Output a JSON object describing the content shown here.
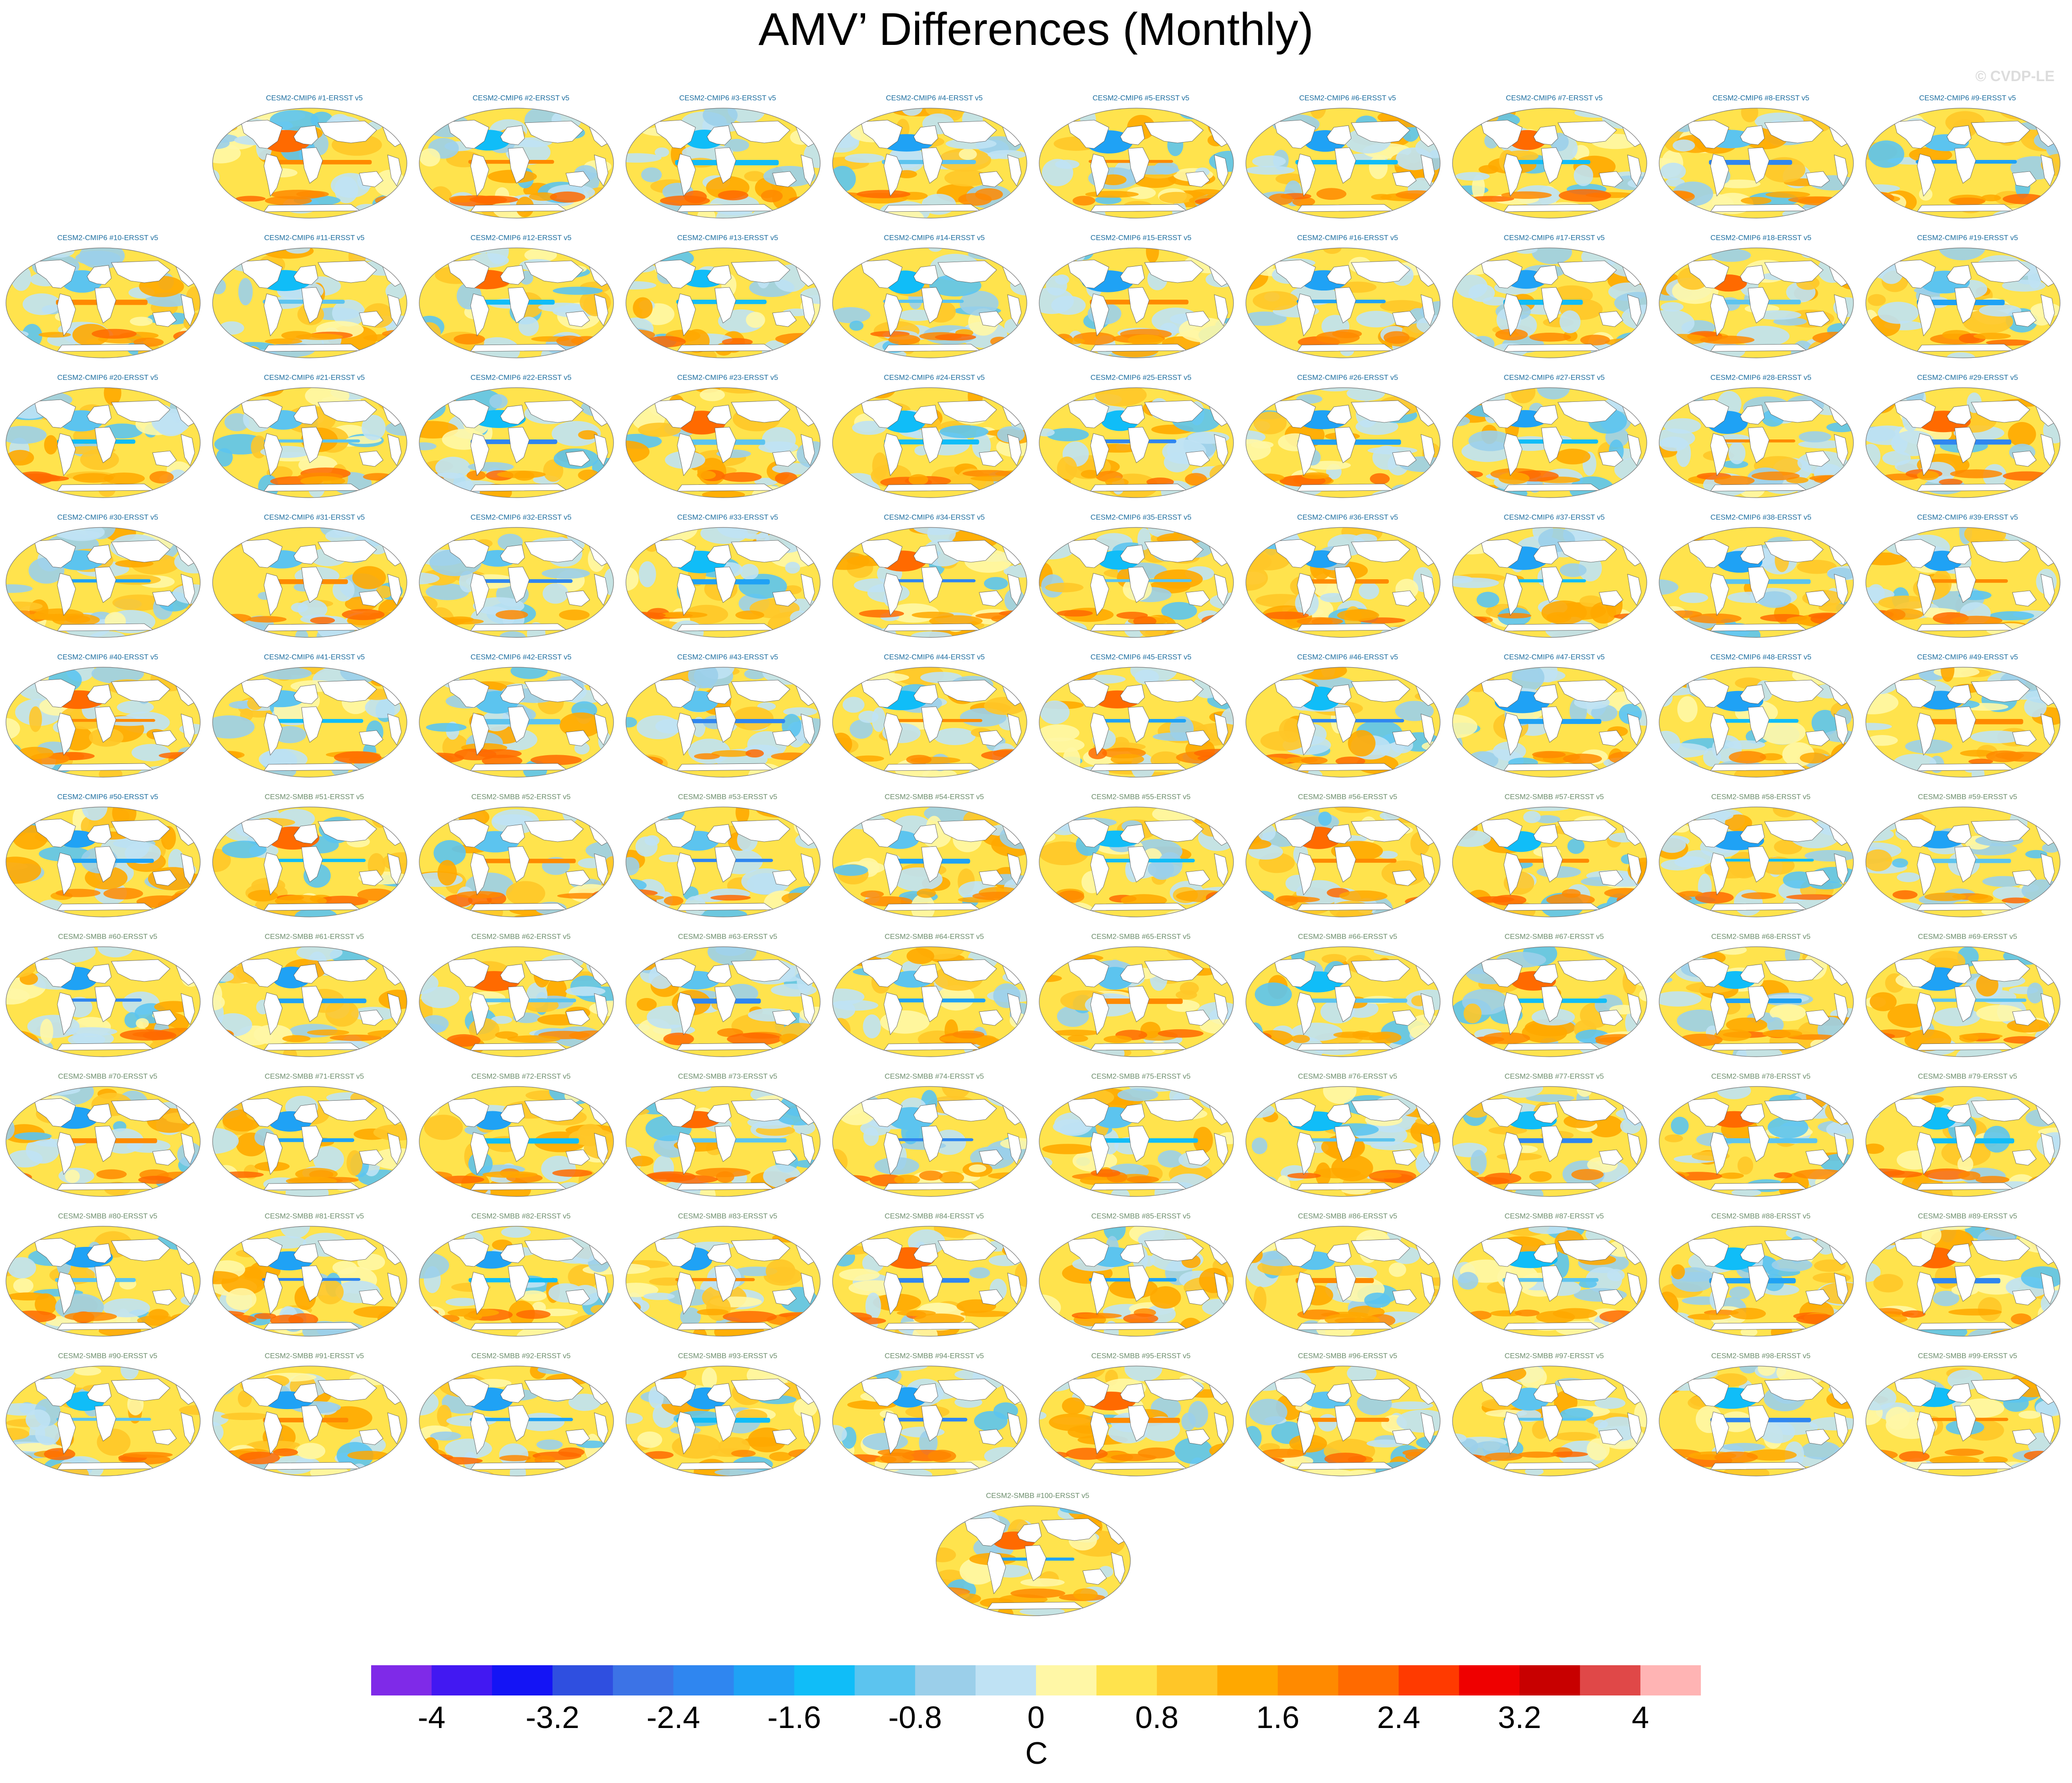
{
  "title": "AMV’ Differences (Monthly)",
  "watermark": "© CVDP-LE",
  "label_colors": {
    "cmip6": "#1f6fa0",
    "smbb": "#6e8f6e"
  },
  "chart_data": {
    "type": "heatmap",
    "description_kind": "map panels",
    "panels": [
      "CESM2-CMIP6 #1-ERSST v5",
      "CESM2-CMIP6 #2-ERSST v5",
      "CESM2-CMIP6 #3-ERSST v5",
      "CESM2-CMIP6 #4-ERSST v5",
      "CESM2-CMIP6 #5-ERSST v5",
      "CESM2-CMIP6 #6-ERSST v5",
      "CESM2-CMIP6 #7-ERSST v5",
      "CESM2-CMIP6 #8-ERSST v5",
      "CESM2-CMIP6 #9-ERSST v5",
      "CESM2-CMIP6 #10-ERSST v5",
      "CESM2-CMIP6 #11-ERSST v5",
      "CESM2-CMIP6 #12-ERSST v5",
      "CESM2-CMIP6 #13-ERSST v5",
      "CESM2-CMIP6 #14-ERSST v5",
      "CESM2-CMIP6 #15-ERSST v5",
      "CESM2-CMIP6 #16-ERSST v5",
      "CESM2-CMIP6 #17-ERSST v5",
      "CESM2-CMIP6 #18-ERSST v5",
      "CESM2-CMIP6 #19-ERSST v5",
      "CESM2-CMIP6 #20-ERSST v5",
      "CESM2-CMIP6 #21-ERSST v5",
      "CESM2-CMIP6 #22-ERSST v5",
      "CESM2-CMIP6 #23-ERSST v5",
      "CESM2-CMIP6 #24-ERSST v5",
      "CESM2-CMIP6 #25-ERSST v5",
      "CESM2-CMIP6 #26-ERSST v5",
      "CESM2-CMIP6 #27-ERSST v5",
      "CESM2-CMIP6 #28-ERSST v5",
      "CESM2-CMIP6 #29-ERSST v5",
      "CESM2-CMIP6 #30-ERSST v5",
      "CESM2-CMIP6 #31-ERSST v5",
      "CESM2-CMIP6 #32-ERSST v5",
      "CESM2-CMIP6 #33-ERSST v5",
      "CESM2-CMIP6 #34-ERSST v5",
      "CESM2-CMIP6 #35-ERSST v5",
      "CESM2-CMIP6 #36-ERSST v5",
      "CESM2-CMIP6 #37-ERSST v5",
      "CESM2-CMIP6 #38-ERSST v5",
      "CESM2-CMIP6 #39-ERSST v5",
      "CESM2-CMIP6 #40-ERSST v5",
      "CESM2-CMIP6 #41-ERSST v5",
      "CESM2-CMIP6 #42-ERSST v5",
      "CESM2-CMIP6 #43-ERSST v5",
      "CESM2-CMIP6 #44-ERSST v5",
      "CESM2-CMIP6 #45-ERSST v5",
      "CESM2-CMIP6 #46-ERSST v5",
      "CESM2-CMIP6 #47-ERSST v5",
      "CESM2-CMIP6 #48-ERSST v5",
      "CESM2-CMIP6 #49-ERSST v5",
      "CESM2-CMIP6 #50-ERSST v5",
      "CESM2-SMBB #51-ERSST v5",
      "CESM2-SMBB #52-ERSST v5",
      "CESM2-SMBB #53-ERSST v5",
      "CESM2-SMBB #54-ERSST v5",
      "CESM2-SMBB #55-ERSST v5",
      "CESM2-SMBB #56-ERSST v5",
      "CESM2-SMBB #57-ERSST v5",
      "CESM2-SMBB #58-ERSST v5",
      "CESM2-SMBB #59-ERSST v5",
      "CESM2-SMBB #60-ERSST v5",
      "CESM2-SMBB #61-ERSST v5",
      "CESM2-SMBB #62-ERSST v5",
      "CESM2-SMBB #63-ERSST v5",
      "CESM2-SMBB #64-ERSST v5",
      "CESM2-SMBB #65-ERSST v5",
      "CESM2-SMBB #66-ERSST v5",
      "CESM2-SMBB #67-ERSST v5",
      "CESM2-SMBB #68-ERSST v5",
      "CESM2-SMBB #69-ERSST v5",
      "CESM2-SMBB #70-ERSST v5",
      "CESM2-SMBB #71-ERSST v5",
      "CESM2-SMBB #72-ERSST v5",
      "CESM2-SMBB #73-ERSST v5",
      "CESM2-SMBB #74-ERSST v5",
      "CESM2-SMBB #75-ERSST v5",
      "CESM2-SMBB #76-ERSST v5",
      "CESM2-SMBB #77-ERSST v5",
      "CESM2-SMBB #78-ERSST v5",
      "CESM2-SMBB #79-ERSST v5",
      "CESM2-SMBB #80-ERSST v5",
      "CESM2-SMBB #81-ERSST v5",
      "CESM2-SMBB #82-ERSST v5",
      "CESM2-SMBB #83-ERSST v5",
      "CESM2-SMBB #84-ERSST v5",
      "CESM2-SMBB #85-ERSST v5",
      "CESM2-SMBB #86-ERSST v5",
      "CESM2-SMBB #87-ERSST v5",
      "CESM2-SMBB #88-ERSST v5",
      "CESM2-SMBB #89-ERSST v5",
      "CESM2-SMBB #90-ERSST v5",
      "CESM2-SMBB #91-ERSST v5",
      "CESM2-SMBB #92-ERSST v5",
      "CESM2-SMBB #93-ERSST v5",
      "CESM2-SMBB #94-ERSST v5",
      "CESM2-SMBB #95-ERSST v5",
      "CESM2-SMBB #96-ERSST v5",
      "CESM2-SMBB #97-ERSST v5",
      "CESM2-SMBB #98-ERSST v5",
      "CESM2-SMBB #99-ERSST v5",
      "CESM2-SMBB #100-ERSST v5"
    ],
    "colorbar": {
      "levels": [
        -4.4,
        -4,
        -3.6,
        -3.2,
        -2.8,
        -2.4,
        -2,
        -1.6,
        -1.2,
        -0.8,
        -0.4,
        0,
        0.4,
        0.8,
        1.2,
        1.6,
        2,
        2.4,
        2.8,
        3.2,
        3.6,
        4,
        4.4
      ],
      "colors": [
        "#7f2ae8",
        "#4218f2",
        "#1414f5",
        "#2f4fe0",
        "#3c73e6",
        "#2f86f0",
        "#1fa2f5",
        "#10bdf8",
        "#5cc4ef",
        "#9bcfea",
        "#bfe2f4",
        "#fff7a6",
        "#ffe34d",
        "#ffc628",
        "#ffa800",
        "#ff8a00",
        "#ff6a00",
        "#ff3a00",
        "#ef0000",
        "#c80000",
        "#e04848",
        "#ffb4b4"
      ],
      "tick_labels": [
        "-4",
        "-3.2",
        "-2.4",
        "-1.6",
        "-0.8",
        "0",
        "0.8",
        "1.6",
        "2.4",
        "3.2",
        "4"
      ],
      "tick_values": [
        -4,
        -3.2,
        -2.4,
        -1.6,
        -0.8,
        0,
        0.8,
        1.6,
        2.4,
        3.2,
        4
      ],
      "units": "C"
    }
  }
}
